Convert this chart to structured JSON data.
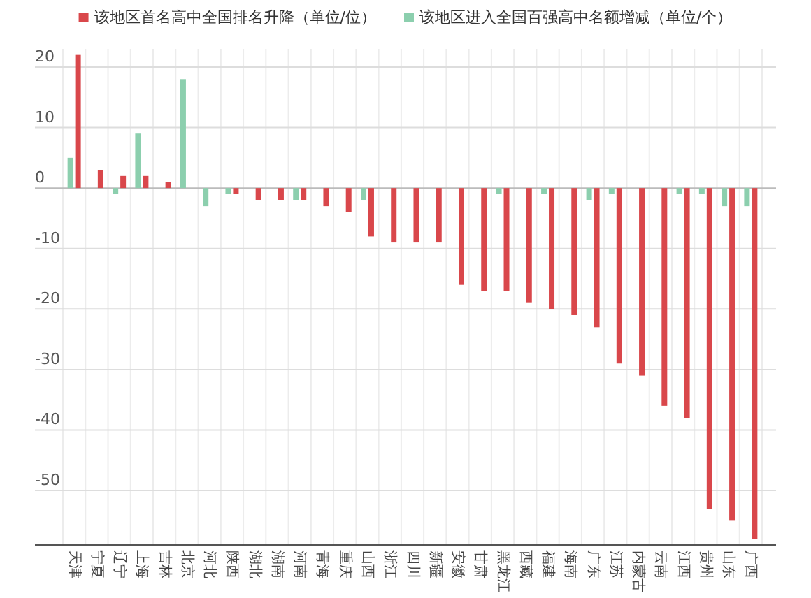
{
  "chart_data": {
    "type": "bar",
    "categories": [
      "天津",
      "宁夏",
      "辽宁",
      "上海",
      "吉林",
      "北京",
      "河北",
      "陕西",
      "湖北",
      "湖南",
      "河南",
      "青海",
      "重庆",
      "山西",
      "浙江",
      "四川",
      "新疆",
      "安徽",
      "甘肃",
      "黑龙江",
      "西藏",
      "福建",
      "海南",
      "广东",
      "江苏",
      "内蒙古",
      "云南",
      "江西",
      "贵州",
      "山东",
      "广西"
    ],
    "series": [
      {
        "name": "该地区首名高中全国排名升降（单位/位）",
        "color": "#d9474b",
        "values": [
          22,
          3,
          2,
          2,
          1,
          0,
          0,
          -1,
          -2,
          -2,
          -2,
          -3,
          -4,
          -8,
          -9,
          -9,
          -9,
          -16,
          -17,
          -17,
          -19,
          -20,
          -21,
          -23,
          -29,
          -31,
          -36,
          -38,
          -53,
          -55,
          -58
        ]
      },
      {
        "name": "该地区进入全国百强高中名额增减（单位/个）",
        "color": "#8ccfae",
        "values": [
          5,
          0,
          -1,
          9,
          0,
          18,
          -3,
          -1,
          0,
          0,
          -2,
          0,
          0,
          -2,
          0,
          0,
          0,
          0,
          0,
          -1,
          0,
          -1,
          0,
          -2,
          -1,
          0,
          0,
          -1,
          -1,
          -3,
          -3
        ]
      }
    ],
    "ylim": [
      -59,
      23
    ],
    "yticks": [
      -50,
      -40,
      -30,
      -20,
      -10,
      0,
      10,
      20
    ],
    "grid": true,
    "legend": "top"
  }
}
